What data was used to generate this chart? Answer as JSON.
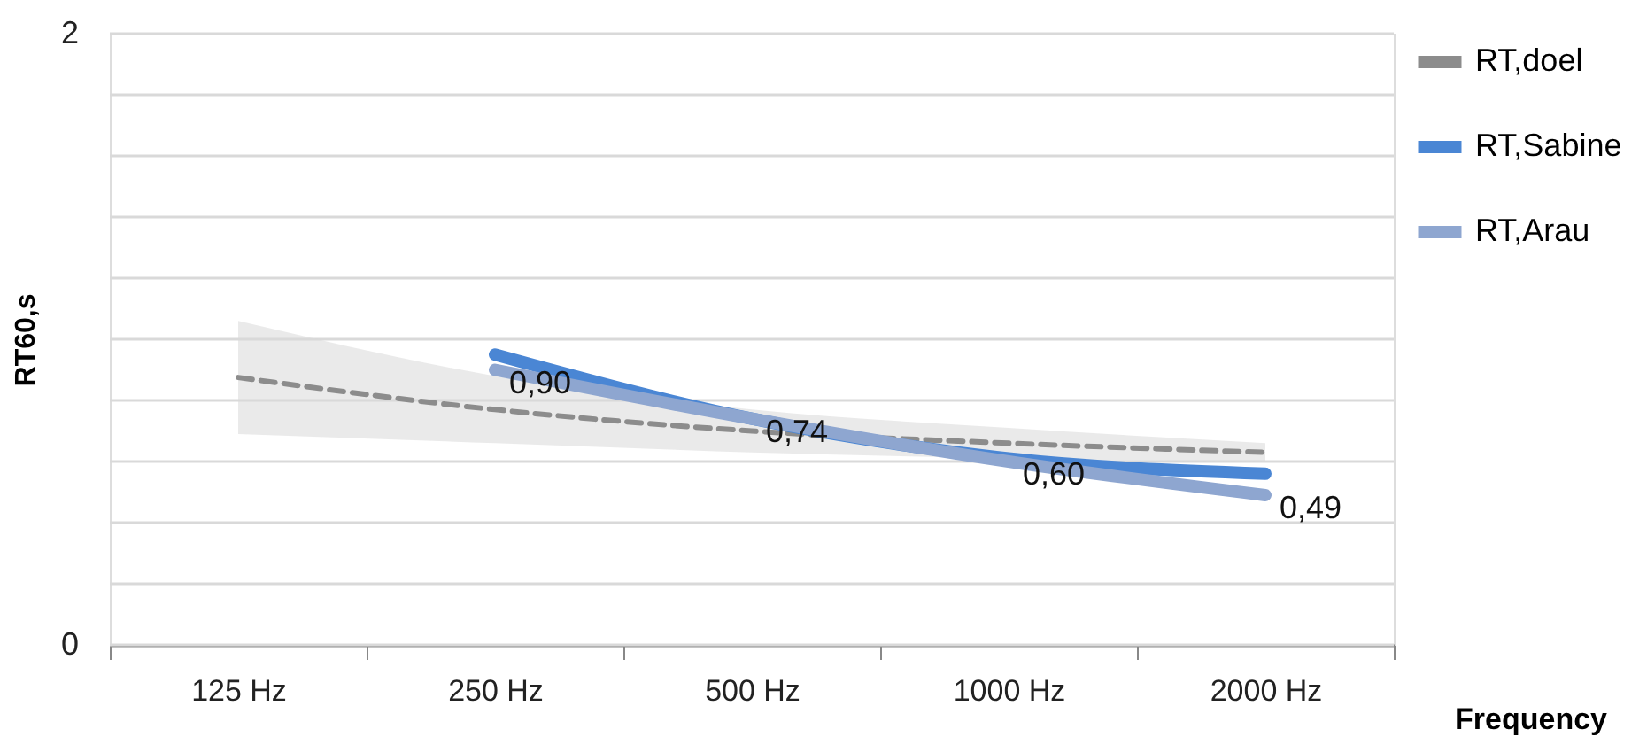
{
  "chart_data": {
    "type": "line",
    "xlabel": "Frequency",
    "ylabel": "RT60,s",
    "categories": [
      "125 Hz",
      "250 Hz",
      "500 Hz",
      "1000 Hz",
      "2000 Hz"
    ],
    "ylim": [
      0,
      2
    ],
    "yticks": [
      0,
      {
        "value": 0.2,
        "label": null
      },
      {
        "value": 0.4,
        "label": null
      },
      {
        "value": 0.6,
        "label": null
      },
      {
        "value": 0.8,
        "label": null
      },
      {
        "value": 1.0,
        "label": null
      },
      {
        "value": 1.2,
        "label": null
      },
      {
        "value": 1.4,
        "label": null
      },
      {
        "value": 1.6,
        "label": null
      },
      {
        "value": 1.8,
        "label": null
      },
      2
    ],
    "grid": "y",
    "legend": "right",
    "marker": "none",
    "series": [
      {
        "name": "RT,doel",
        "color": "#8c8c8c",
        "line_style": "dashed",
        "values": [
          0.875,
          0.77,
          0.7,
          0.66,
          0.63
        ],
        "lower": [
          0.69,
          0.66,
          0.63,
          0.61,
          0.6
        ],
        "upper": [
          1.06,
          0.88,
          0.77,
          0.71,
          0.66
        ]
      },
      {
        "name": "RT,Sabine",
        "color": "#4a86d4",
        "line_style": "solid",
        "values": [
          null,
          0.95,
          0.74,
          0.61,
          0.56
        ]
      },
      {
        "name": "RT,Arau",
        "color": "#8ea6d0",
        "line_style": "solid",
        "values": [
          null,
          0.9,
          0.74,
          0.6,
          0.49
        ],
        "value_labels": [
          null,
          "0,90",
          "0,74",
          "0,60",
          "0,49"
        ]
      }
    ]
  }
}
